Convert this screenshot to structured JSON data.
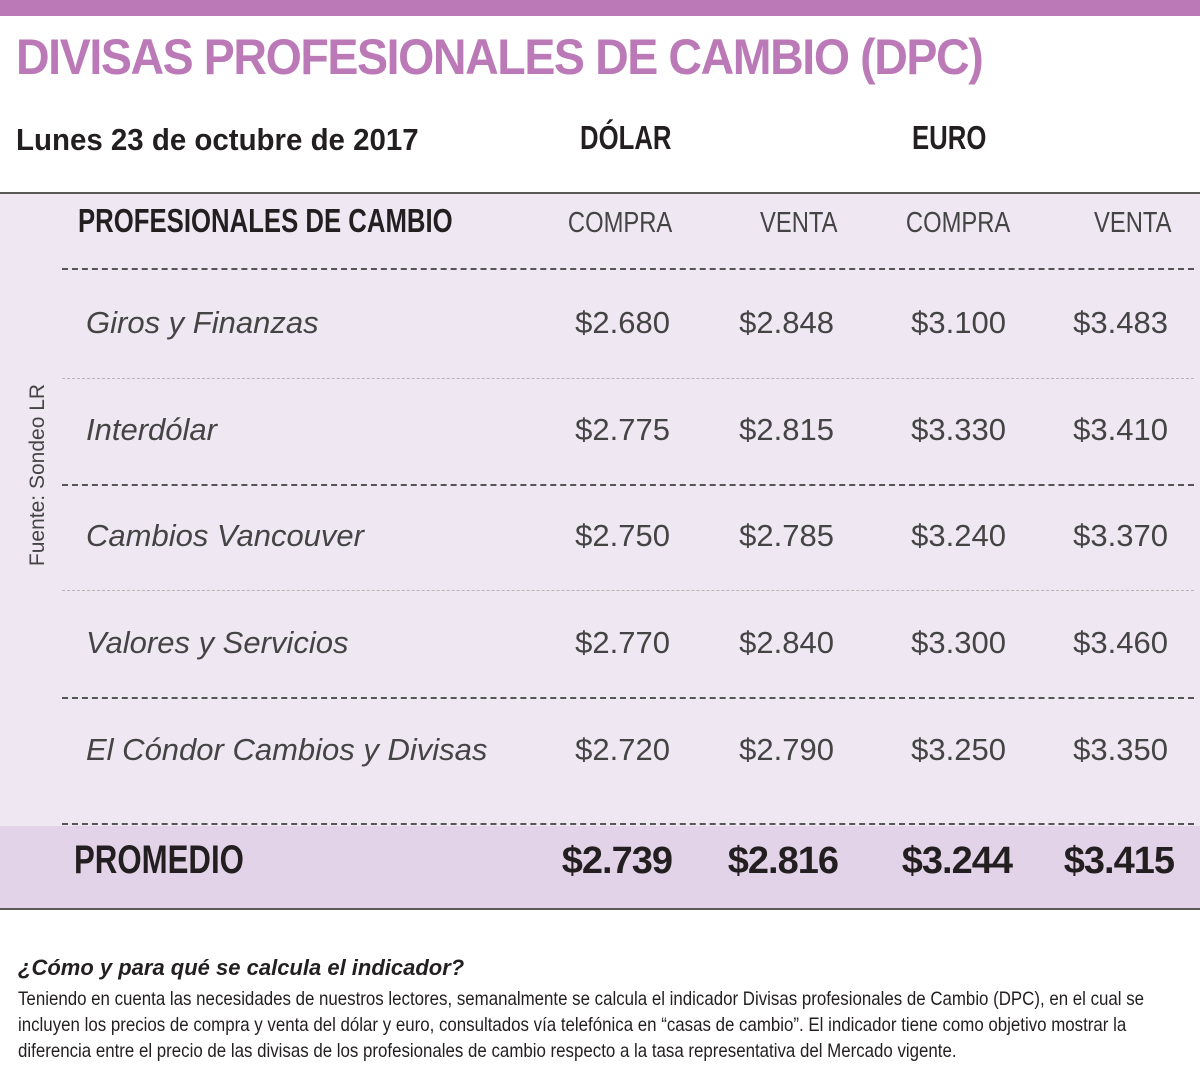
{
  "title": "DIVISAS PROFESIONALES DE CAMBIO (DPC)",
  "date": "Lunes 23 de octubre de 2017",
  "currencies": {
    "usd": "DÓLAR",
    "eur": "EURO"
  },
  "source": "Fuente: Sondeo LR",
  "table": {
    "header_name": "PROFESIONALES DE CAMBIO",
    "col_headers": [
      "COMPRA",
      "VENTA",
      "COMPRA",
      "VENTA"
    ],
    "rows": [
      {
        "name": "Giros y Finanzas",
        "values": [
          "$2.680",
          "$2.848",
          "$3.100",
          "$3.483"
        ]
      },
      {
        "name": "Interdólar",
        "values": [
          "$2.775",
          "$2.815",
          "$3.330",
          "$3.410"
        ]
      },
      {
        "name": "Cambios Vancouver",
        "values": [
          "$2.750",
          "$2.785",
          "$3.240",
          "$3.370"
        ]
      },
      {
        "name": "Valores y Servicios",
        "values": [
          "$2.770",
          "$2.840",
          "$3.300",
          "$3.460"
        ]
      },
      {
        "name": "El Cóndor Cambios y Divisas",
        "values": [
          "$2.720",
          "$2.790",
          "$3.250",
          "$3.350"
        ]
      }
    ],
    "average": {
      "label": "PROMEDIO",
      "values": [
        "$2.739",
        "$2.816",
        "$3.244",
        "$3.415"
      ]
    }
  },
  "note": {
    "question": "¿Cómo y para qué se calcula el indicador?",
    "body": "Teniendo en cuenta las necesidades de nuestros lectores, semanalmente se calcula el indicador Divisas profesionales de Cambio (DPC), en el cual se incluyen los precios de compra y venta del dólar y euro, consultados vía telefónica en  “casas de cambio”. El indicador tiene como objetivo mostrar la diferencia entre el precio de las divisas de los profesionales de  cambio respecto a la tasa representativa del Mercado vigente."
  },
  "colors": {
    "accent": "#bb7ab7",
    "panel": "#efe7f2",
    "average_band": "#e3d3e8"
  }
}
